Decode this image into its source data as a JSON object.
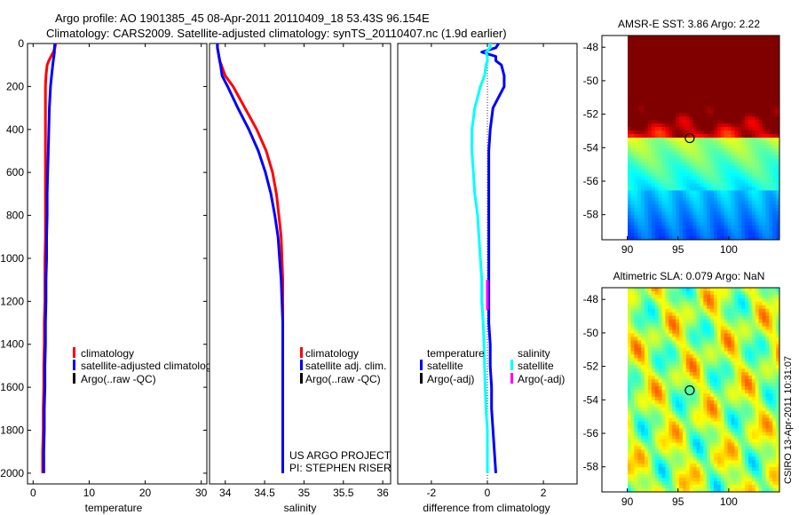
{
  "title_line1": "Argo profile: AO 1901385_45 08-Apr-2011 20110409_18 53.43S 96.154E",
  "title_line2": "Climatology: CARS2009. Satellite-adjusted climatology: synTS_20110407.nc (1.9d earlier)",
  "credit": "CSIRO 13-Apr-2011 10:31:07",
  "colors": {
    "clim": "#ff0000",
    "sat": "#0000ff",
    "argo": "#000000",
    "sal_sat": "#00ffff",
    "sal_argo": "#ff00ff"
  },
  "pressure": [
    0,
    20,
    40,
    60,
    80,
    100,
    150,
    200,
    300,
    400,
    500,
    600,
    700,
    800,
    900,
    1000,
    1100,
    1200,
    1300,
    1400,
    1500,
    1600,
    1700,
    1800,
    1900,
    2000
  ],
  "chart_data": [
    {
      "type": "line",
      "name": "temperature-profile",
      "xlabel": "temperature",
      "ylabel": "pressure",
      "xlim": [
        -1,
        31
      ],
      "ylim": [
        2050,
        0
      ],
      "xticks": [
        0,
        10,
        20,
        30
      ],
      "yticks": [
        0,
        200,
        400,
        600,
        800,
        1000,
        1200,
        1400,
        1600,
        1800,
        2000
      ],
      "legend": [
        "climatology",
        "satellite-adjusted climatology",
        "Argo(..raw -QC)"
      ],
      "series": [
        {
          "name": "climatology",
          "color": "#ff0000",
          "values": [
            4.0,
            3.9,
            3.6,
            3.2,
            2.8,
            2.5,
            2.3,
            2.2,
            2.2,
            2.2,
            2.2,
            2.2,
            2.2,
            2.2,
            2.2,
            2.1,
            2.1,
            2.1,
            2.0,
            2.0,
            1.9,
            1.9,
            1.8,
            1.8,
            1.7,
            1.7
          ]
        },
        {
          "name": "satellite-adjusted climatology",
          "color": "#0000ff",
          "values": [
            3.9,
            3.8,
            3.8,
            3.7,
            3.6,
            3.5,
            3.3,
            3.1,
            2.9,
            2.8,
            2.7,
            2.6,
            2.5,
            2.5,
            2.4,
            2.4,
            2.3,
            2.3,
            2.2,
            2.2,
            2.1,
            2.1,
            2.0,
            2.0,
            1.9,
            1.9
          ]
        }
      ]
    },
    {
      "type": "line",
      "name": "salinity-profile",
      "xlabel": "salinity",
      "ylabel": "",
      "xlim": [
        33.8,
        36.1
      ],
      "ylim": [
        2050,
        0
      ],
      "xticks": [
        34,
        34.5,
        35,
        35.5,
        36
      ],
      "xticklabels": [
        "34",
        "34.5",
        "35",
        "35.5",
        "36"
      ],
      "legend": [
        "climatology",
        "satellite adj. clim.",
        "Argo(..raw -QC)"
      ],
      "annotation": [
        "US ARGO PROJECT",
        "PI: STEPHEN RISER"
      ],
      "series": [
        {
          "name": "climatology",
          "color": "#ff0000",
          "values": [
            33.9,
            33.9,
            33.91,
            33.92,
            33.93,
            33.95,
            34.0,
            34.1,
            34.25,
            34.4,
            34.52,
            34.6,
            34.65,
            34.68,
            34.71,
            34.72,
            34.73,
            34.73,
            34.73,
            34.73,
            34.73,
            34.73,
            34.73,
            34.73,
            34.73,
            34.73
          ]
        },
        {
          "name": "satellite adj. clim.",
          "color": "#0000ff",
          "values": [
            33.9,
            33.9,
            33.91,
            33.92,
            33.93,
            33.94,
            33.96,
            34.03,
            34.16,
            34.3,
            34.42,
            34.51,
            34.58,
            34.63,
            34.67,
            34.69,
            34.71,
            34.72,
            34.73,
            34.73,
            34.73,
            34.73,
            34.73,
            34.73,
            34.73,
            34.73
          ]
        }
      ]
    },
    {
      "type": "line",
      "name": "difference-from-climatology",
      "xlabel": "difference from climatology",
      "ylabel": "",
      "xlim": [
        -3.2,
        3.2
      ],
      "ylim": [
        2050,
        0
      ],
      "xticks": [
        -2,
        0,
        2
      ],
      "legend_temperature": [
        "temperature",
        "satellite",
        "Argo(-adj)"
      ],
      "legend_salinity": [
        "salinity",
        "satellite",
        "Argo(-adj)"
      ],
      "series": [
        {
          "name": "temperature satellite",
          "color": "#0000ff",
          "values": [
            0.4,
            0.3,
            -0.2,
            0.3,
            0.3,
            0.5,
            0.6,
            0.6,
            0.2,
            0.1,
            0.05,
            0.05,
            0.05,
            0.05,
            0.05,
            0.05,
            0.05,
            0.05,
            0.05,
            0.1,
            0.1,
            0.15,
            0.15,
            0.2,
            0.25,
            0.3
          ]
        },
        {
          "name": "salinity satellite",
          "color": "#00ffff",
          "values": [
            0.1,
            0.1,
            -0.05,
            0.0,
            0.0,
            -0.05,
            -0.1,
            -0.25,
            -0.45,
            -0.55,
            -0.55,
            -0.5,
            -0.45,
            -0.35,
            -0.3,
            -0.25,
            -0.2,
            -0.2,
            -0.15,
            -0.12,
            -0.1,
            -0.08,
            -0.05,
            0.0,
            0.0,
            0.0
          ]
        }
      ],
      "argo_salinity_segment": {
        "x": 0.0,
        "p_from": 1100,
        "p_to": 1240
      }
    },
    {
      "type": "heatmap",
      "name": "amsre-sst-map",
      "title": "AMSR-E SST: 3.86 Argo: 2.22",
      "xlim": [
        87.5,
        105
      ],
      "ylim": [
        -59.5,
        -47.3
      ],
      "xticks": [
        90,
        95,
        100
      ],
      "yticks": [
        -48,
        -50,
        -52,
        -54,
        -56,
        -58
      ],
      "float_position": {
        "lon": 96.154,
        "lat": -53.43
      }
    },
    {
      "type": "heatmap",
      "name": "altimetric-sla-map",
      "title": "Altimetric SLA: 0.079 Argo: NaN",
      "xlim": [
        87.5,
        105
      ],
      "ylim": [
        -59.5,
        -47.3
      ],
      "xticks": [
        90,
        95,
        100
      ],
      "yticks": [
        -48,
        -50,
        -52,
        -54,
        -56,
        -58
      ],
      "float_position": {
        "lon": 96.154,
        "lat": -53.43
      }
    }
  ]
}
